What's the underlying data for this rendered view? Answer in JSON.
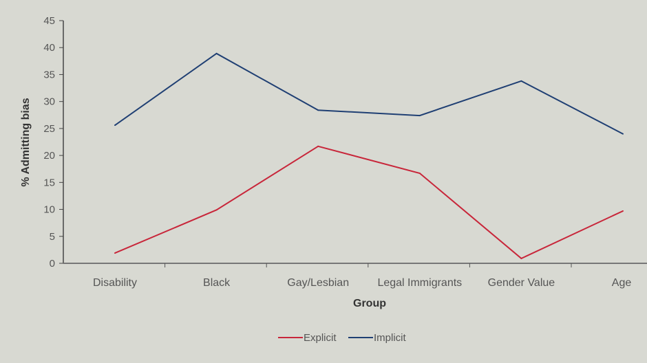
{
  "chart_data": {
    "type": "line",
    "title": "",
    "xlabel": "Group",
    "ylabel": "% Admitting bias",
    "ylim": [
      0,
      45
    ],
    "yticks": [
      0,
      5,
      10,
      15,
      20,
      25,
      30,
      35,
      40,
      45
    ],
    "categories": [
      "Disability",
      "Black",
      "Gay/Lesbian",
      "Legal Immigrants",
      "Gender Value",
      "Age"
    ],
    "series": [
      {
        "name": "Explicit",
        "color": "#c8263a",
        "values": [
          1.9,
          9.9,
          21.7,
          16.7,
          0.9,
          9.7
        ]
      },
      {
        "name": "Implicit",
        "color": "#1f3f73",
        "values": [
          25.6,
          38.9,
          28.4,
          27.4,
          33.8,
          24.0
        ]
      }
    ],
    "grid": false,
    "legend": "bottom"
  }
}
